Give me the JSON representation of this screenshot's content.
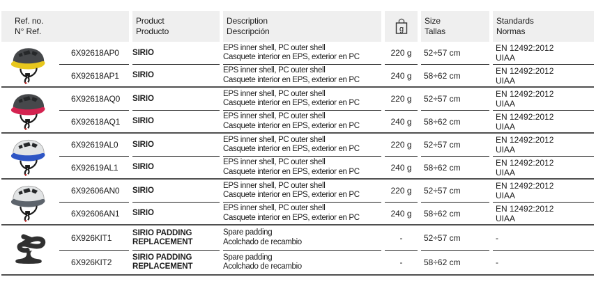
{
  "header": {
    "ref": {
      "en": "Ref. no.",
      "es": "N° Ref."
    },
    "product": {
      "en": "Product",
      "es": "Producto"
    },
    "description": {
      "en": "Description",
      "es": "Descripción"
    },
    "weight_unit": "g",
    "size": {
      "en": "Size",
      "es": "Tallas"
    },
    "standards": {
      "en": "Standards",
      "es": "Normas"
    }
  },
  "colors": {
    "header_bg": "#efefef",
    "thick_rule": "#4f4f4f",
    "thin_rule": "#1f1f1f",
    "text": "#1b1b1b"
  },
  "groups": [
    {
      "image": "helmet-dark-yellow",
      "image_colors": {
        "shell": "#46484b",
        "band": "#e8c71d"
      },
      "rows": [
        {
          "ref": "6X92618AP0",
          "product": "SIRIO",
          "desc": {
            "en": "EPS inner shell, PC outer shell",
            "es": "Casquete interior en EPS, exterior en PC"
          },
          "weight": "220 g",
          "size": "52÷57 cm",
          "std": [
            "EN 12492:2012",
            "UIAA"
          ]
        },
        {
          "ref": "6X92618AP1",
          "product": "SIRIO",
          "desc": {
            "en": "EPS inner shell, PC outer shell",
            "es": "Casquete interior en EPS, exterior en PC"
          },
          "weight": "240 g",
          "size": "58÷62 cm",
          "std": [
            "EN 12492:2012",
            "UIAA"
          ]
        }
      ]
    },
    {
      "image": "helmet-dark-red",
      "image_colors": {
        "shell": "#46484b",
        "band": "#d42350"
      },
      "rows": [
        {
          "ref": "6X92618AQ0",
          "product": "SIRIO",
          "desc": {
            "en": "EPS inner shell, PC outer shell",
            "es": "Casquete interior en EPS, exterior en PC"
          },
          "weight": "220 g",
          "size": "52÷57 cm",
          "std": [
            "EN 12492:2012",
            "UIAA"
          ]
        },
        {
          "ref": "6X92618AQ1",
          "product": "SIRIO",
          "desc": {
            "en": "EPS inner shell, PC outer shell",
            "es": "Casquete interior en EPS, exterior en PC"
          },
          "weight": "240 g",
          "size": "58÷62 cm",
          "std": [
            "EN 12492:2012",
            "UIAA"
          ]
        }
      ]
    },
    {
      "image": "helmet-white-blue",
      "image_colors": {
        "shell": "#e2e4e5",
        "band": "#2e55c4"
      },
      "rows": [
        {
          "ref": "6X92619AL0",
          "product": "SIRIO",
          "desc": {
            "en": "EPS inner shell, PC outer shell",
            "es": "Casquete interior en EPS, exterior en PC"
          },
          "weight": "220 g",
          "size": "52÷57 cm",
          "std": [
            "EN 12492:2012",
            "UIAA"
          ]
        },
        {
          "ref": "6X92619AL1",
          "product": "SIRIO",
          "desc": {
            "en": "EPS inner shell, PC outer shell",
            "es": "Casquete interior en EPS, exterior en PC"
          },
          "weight": "240 g",
          "size": "58÷62 cm",
          "std": [
            "EN 12492:2012",
            "UIAA"
          ]
        }
      ]
    },
    {
      "image": "helmet-white-grey",
      "image_colors": {
        "shell": "#e2e4e5",
        "band": "#5d646c"
      },
      "rows": [
        {
          "ref": "6X92606AN0",
          "product": "SIRIO",
          "desc": {
            "en": "EPS inner shell, PC outer shell",
            "es": "Casquete interior en EPS, exterior en PC"
          },
          "weight": "220 g",
          "size": "52÷57 cm",
          "std": [
            "EN 12492:2012",
            "UIAA"
          ]
        },
        {
          "ref": "6X92606AN1",
          "product": "SIRIO",
          "desc": {
            "en": "EPS inner shell, PC outer shell",
            "es": "Casquete interior en EPS, exterior en PC"
          },
          "weight": "240 g",
          "size": "58÷62 cm",
          "std": [
            "EN 12492:2012",
            "UIAA"
          ]
        }
      ]
    },
    {
      "image": "spare-padding",
      "image_colors": {
        "shell": "#303030",
        "band": "#303030"
      },
      "rows": [
        {
          "ref": "6X926KIT1",
          "product": "SIRIO PADDING REPLACEMENT",
          "desc": {
            "en": "Spare padding",
            "es": "Acolchado de recambio"
          },
          "weight": "-",
          "size": "52÷57 cm",
          "std": [
            "-",
            ""
          ]
        },
        {
          "ref": "6X926KIT2",
          "product": "SIRIO PADDING REPLACEMENT",
          "desc": {
            "en": "Spare padding",
            "es": "Acolchado de recambio"
          },
          "weight": "-",
          "size": "58÷62 cm",
          "std": [
            "-",
            ""
          ]
        }
      ]
    }
  ]
}
